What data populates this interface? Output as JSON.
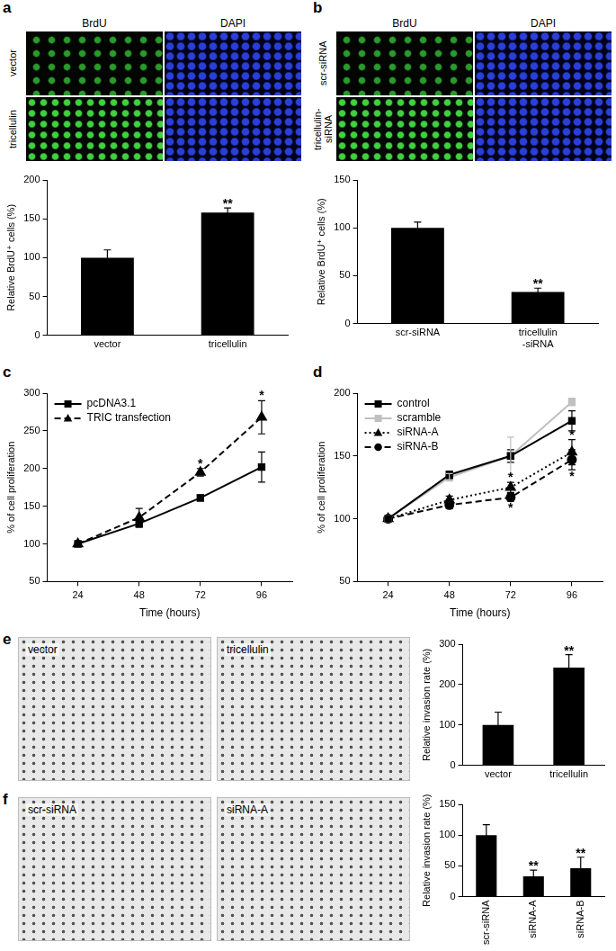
{
  "chart_data": [
    {
      "panel": "a",
      "type": "bar",
      "micrographs": {
        "columns": [
          "BrdU",
          "DAPI"
        ],
        "rows": [
          "vector",
          "tricellulin"
        ]
      },
      "categories": [
        "vector",
        "tricellulin"
      ],
      "values": [
        100,
        158
      ],
      "errors": [
        10,
        6
      ],
      "color": "#000000",
      "y_label": "Relative BrdU⁺ cells (%)",
      "ylim": [
        0,
        200
      ],
      "yticks": [
        0,
        50,
        100,
        150,
        200
      ],
      "grid": false,
      "annotations": [
        {
          "category": "tricellulin",
          "text": "**"
        }
      ]
    },
    {
      "panel": "b",
      "type": "bar",
      "micrographs": {
        "columns": [
          "BrdU",
          "DAPI"
        ],
        "rows": [
          "scr-siRNA",
          "tricellulin-siRNA"
        ]
      },
      "categories": [
        "scr-siRNA",
        "tricellulin-siRNA"
      ],
      "values": [
        100,
        33
      ],
      "errors": [
        6,
        4
      ],
      "color": "#000000",
      "y_label": "Relative BrdU⁺ cells (%)",
      "ylim": [
        0,
        150
      ],
      "yticks": [
        0,
        50,
        100,
        150
      ],
      "grid": false,
      "annotations": [
        {
          "category": "tricellulin-siRNA",
          "text": "**"
        }
      ]
    },
    {
      "panel": "c",
      "type": "line",
      "categories": [
        "24",
        "48",
        "72",
        "96"
      ],
      "x_label": "Time (hours)",
      "y_label": "% of cell proliferation",
      "ylim": [
        50,
        300
      ],
      "yticks": [
        50,
        100,
        150,
        200,
        250,
        300
      ],
      "grid": false,
      "legend": "upper left",
      "series": [
        {
          "name": "pcDNA3.1",
          "color": "#000000",
          "marker": "square",
          "line_style": "solid",
          "values": [
            100,
            127,
            161,
            202
          ],
          "errors": [
            0,
            5,
            4,
            20
          ]
        },
        {
          "name": "TRIC transfection",
          "color": "#000000",
          "marker": "triangle",
          "line_style": "dashed",
          "values": [
            100,
            135,
            195,
            268
          ],
          "errors": [
            0,
            12,
            5,
            22
          ]
        }
      ],
      "annotations": [
        {
          "category": "72",
          "series": "TRIC transfection",
          "text": "*"
        },
        {
          "category": "96",
          "series": "TRIC transfection",
          "text": "*"
        }
      ]
    },
    {
      "panel": "d",
      "type": "line",
      "categories": [
        "24",
        "48",
        "72",
        "96"
      ],
      "x_label": "Time (hours)",
      "y_label": "% of cell proliferation",
      "ylim": [
        50,
        200
      ],
      "yticks": [
        50,
        100,
        150,
        200
      ],
      "grid": false,
      "legend": "upper left",
      "series": [
        {
          "name": "control",
          "color": "#000000",
          "marker": "square",
          "line_style": "solid",
          "values": [
            100,
            135,
            150,
            178
          ],
          "errors": [
            0,
            3,
            5,
            8
          ]
        },
        {
          "name": "scramble",
          "color": "#c0c0c0",
          "marker": "square",
          "line_style": "solid",
          "values": [
            100,
            133,
            150,
            193
          ],
          "errors": [
            0,
            3,
            15,
            3
          ]
        },
        {
          "name": "siRNA-A",
          "color": "#000000",
          "marker": "triangle",
          "line_style": "dotted",
          "values": [
            100,
            115,
            125,
            153
          ],
          "errors": [
            0,
            3,
            4,
            10
          ]
        },
        {
          "name": "siRNA-B",
          "color": "#000000",
          "marker": "circle",
          "line_style": "dashed",
          "values": [
            100,
            111,
            117,
            147
          ],
          "errors": [
            0,
            3,
            3,
            8
          ]
        }
      ],
      "annotations": [
        {
          "category": "72",
          "series": "siRNA-A",
          "text": "*"
        },
        {
          "category": "72",
          "series": "siRNA-B",
          "text": "*"
        },
        {
          "category": "96",
          "series": "siRNA-A",
          "text": "*"
        },
        {
          "category": "96",
          "series": "siRNA-B",
          "text": "*"
        }
      ]
    },
    {
      "panel": "e",
      "type": "bar",
      "micrographs": {
        "panels": [
          "vector",
          "tricellulin"
        ]
      },
      "categories": [
        "vector",
        "tricellulin"
      ],
      "values": [
        100,
        242
      ],
      "errors": [
        32,
        32
      ],
      "color": "#000000",
      "y_label": "Relative invasion rate (%)",
      "ylim": [
        0,
        300
      ],
      "yticks": [
        0,
        100,
        200,
        300
      ],
      "grid": false,
      "annotations": [
        {
          "category": "tricellulin",
          "text": "**"
        }
      ]
    },
    {
      "panel": "f",
      "type": "bar",
      "micrographs": {
        "panels": [
          "scr-siRNA",
          "siRNA-A"
        ]
      },
      "categories": [
        "scr-siRNA",
        "siRNA-A",
        "siRNA-B"
      ],
      "values": [
        100,
        33,
        46
      ],
      "errors": [
        17,
        10,
        18
      ],
      "color": "#000000",
      "y_label": "Relative invasion rate (%)",
      "ylim": [
        0,
        150
      ],
      "yticks": [
        0,
        50,
        100,
        150
      ],
      "grid": false,
      "annotations": [
        {
          "category": "siRNA-A",
          "text": "**"
        },
        {
          "category": "siRNA-B",
          "text": "**"
        }
      ]
    }
  ]
}
